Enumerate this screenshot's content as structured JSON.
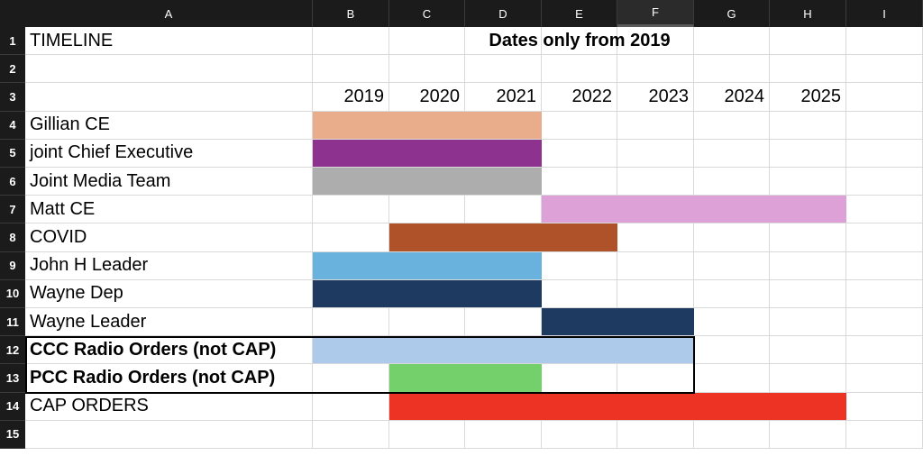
{
  "sheet": {
    "columns": [
      "A",
      "B",
      "C",
      "D",
      "E",
      "F",
      "G",
      "H",
      "I"
    ],
    "selected_column": "F",
    "rows": [
      "1",
      "2",
      "3",
      "4",
      "5",
      "6",
      "7",
      "8",
      "9",
      "10",
      "11",
      "12",
      "13",
      "14",
      "15"
    ],
    "title_cell": "TIMELINE",
    "merged_title": "Dates only from 2019",
    "years": [
      "2019",
      "2020",
      "2021",
      "2022",
      "2023",
      "2024",
      "2025"
    ],
    "items": [
      {
        "label": "Gillian CE",
        "bold": false,
        "start": "2019",
        "end": "2021",
        "color": "#E9AD8C"
      },
      {
        "label": "joint Chief Executive",
        "bold": false,
        "start": "2019",
        "end": "2021",
        "color": "#8E3290"
      },
      {
        "label": "Joint Media Team",
        "bold": false,
        "start": "2019",
        "end": "2021",
        "color": "#ADADAD"
      },
      {
        "label": "Matt CE",
        "bold": false,
        "start": "2022",
        "end": "2025",
        "color": "#DDA1D8"
      },
      {
        "label": "COVID",
        "bold": false,
        "start": "2020",
        "end": "2022",
        "color": "#AF522A"
      },
      {
        "label": "John H Leader",
        "bold": false,
        "start": "2019",
        "end": "2021",
        "color": "#69B2DE"
      },
      {
        "label": "Wayne Dep",
        "bold": false,
        "start": "2019",
        "end": "2021",
        "color": "#1F3A60"
      },
      {
        "label": "Wayne Leader",
        "bold": false,
        "start": "2022",
        "end": "2023",
        "color": "#1F3A60"
      },
      {
        "label": "CCC Radio Orders (not CAP)",
        "bold": true,
        "start": "2019",
        "end": "2023",
        "color": "#AECAEA"
      },
      {
        "label": "PCC Radio Orders (not CAP)",
        "bold": true,
        "start": "2020",
        "end": "2021",
        "color": "#74D06A"
      },
      {
        "label": "CAP ORDERS",
        "bold": false,
        "start": "2020",
        "end": "2025",
        "color": "#EC3324"
      }
    ],
    "colors": {
      "header_bg": "#1B1B1B",
      "header_text": "#FFFFFF",
      "gridline": "#D9D9D9"
    }
  }
}
